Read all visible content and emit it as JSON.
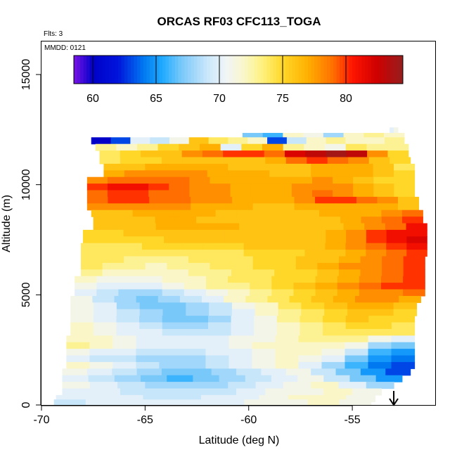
{
  "chart_data": {
    "type": "heatmap",
    "title": "ORCAS RF03 CFC113_TOGA",
    "subtitle": "Flts: 3",
    "annotation": "MMDD: 0121",
    "xlabel": "Latitude (deg N)",
    "ylabel": "Altitude (m)",
    "xlim": [
      -70,
      -51
    ],
    "ylim": [
      0,
      16500
    ],
    "xticks": [
      -70,
      -65,
      -60,
      -55
    ],
    "xtick_labels": [
      "-70",
      "-65",
      "-60",
      "-55"
    ],
    "yticks": [
      0,
      5000,
      10000,
      15000
    ],
    "ytick_labels": [
      "0",
      "5000",
      "10000",
      "15000"
    ],
    "colorbar": {
      "range": [
        58.5,
        84.5
      ],
      "ticks": [
        60,
        65,
        70,
        75,
        80
      ],
      "tick_labels": [
        "60",
        "65",
        "70",
        "75",
        "80"
      ],
      "placement": "top inside plot"
    },
    "rows": [
      {
        "alt": 12450,
        "lat_start": -53.2,
        "lat_end": -52.8,
        "values": [
          70,
          71
        ]
      },
      {
        "alt": 12200,
        "lat_start": -60.3,
        "lat_end": -52.5,
        "values": [
          67,
          66,
          72,
          71,
          68,
          72,
          73,
          72
        ]
      },
      {
        "alt": 12000,
        "lat_start": -67.6,
        "lat_end": -52.5,
        "values": [
          60,
          63,
          70,
          69,
          71,
          76,
          74,
          73,
          72,
          63,
          69,
          72,
          73,
          72,
          72,
          73
        ]
      },
      {
        "alt": 11700,
        "lat_start": -67.4,
        "lat_end": -52.3,
        "values": [
          73,
          72,
          73,
          75,
          76,
          77,
          70,
          75,
          77,
          73,
          72,
          71,
          74,
          73,
          73
        ]
      },
      {
        "alt": 11400,
        "lat_start": -67.2,
        "lat_end": -52.3,
        "values": [
          74,
          75,
          76,
          76,
          78,
          79,
          80,
          80,
          79,
          82,
          83,
          84,
          83,
          78,
          75
        ]
      },
      {
        "alt": 11100,
        "lat_start": -67.2,
        "lat_end": -52.2,
        "values": [
          74,
          75,
          75,
          76,
          76,
          76,
          76,
          76,
          77,
          79,
          80,
          79,
          78,
          76,
          75
        ]
      },
      {
        "alt": 10800,
        "lat_start": -67.0,
        "lat_end": -52.0,
        "values": [
          76,
          76,
          77,
          77,
          77,
          77,
          76,
          76,
          76,
          76,
          77,
          77,
          77,
          76,
          74
        ]
      },
      {
        "alt": 10500,
        "lat_start": -67.0,
        "lat_end": -52.0,
        "values": [
          77,
          78,
          78,
          78,
          78,
          77,
          77,
          77,
          76,
          76,
          77,
          77,
          77,
          76,
          75
        ]
      },
      {
        "alt": 10200,
        "lat_start": -67.8,
        "lat_end": -52.0,
        "values": [
          78,
          79,
          79,
          79,
          79,
          78,
          77,
          77,
          77,
          77,
          77,
          78,
          77,
          76,
          75,
          75
        ]
      },
      {
        "alt": 9900,
        "lat_start": -67.8,
        "lat_end": -52.0,
        "values": [
          80,
          81,
          81,
          80,
          79,
          78,
          78,
          77,
          77,
          77,
          78,
          78,
          78,
          77,
          76,
          75
        ]
      },
      {
        "alt": 9600,
        "lat_start": -67.8,
        "lat_end": -52.0,
        "values": [
          79,
          80,
          80,
          79,
          79,
          78,
          78,
          77,
          77,
          77,
          78,
          79,
          78,
          77,
          76,
          75
        ]
      },
      {
        "alt": 9300,
        "lat_start": -67.8,
        "lat_end": -51.8,
        "values": [
          79,
          80,
          80,
          79,
          79,
          78,
          78,
          77,
          77,
          77,
          78,
          80,
          80,
          79,
          78,
          76
        ]
      },
      {
        "alt": 9000,
        "lat_start": -67.8,
        "lat_end": -51.8,
        "values": [
          78,
          78,
          78,
          78,
          78,
          77,
          77,
          77,
          76,
          76,
          77,
          77,
          77,
          77,
          77,
          76
        ]
      },
      {
        "alt": 8700,
        "lat_start": -67.6,
        "lat_end": -51.6,
        "values": [
          76,
          76,
          77,
          77,
          77,
          77,
          76,
          76,
          76,
          76,
          76,
          77,
          77,
          77,
          78,
          79
        ]
      },
      {
        "alt": 8400,
        "lat_start": -67.5,
        "lat_end": -51.6,
        "values": [
          76,
          76,
          76,
          77,
          77,
          76,
          76,
          76,
          76,
          76,
          76,
          76,
          77,
          78,
          79,
          80
        ]
      },
      {
        "alt": 8100,
        "lat_start": -67.5,
        "lat_end": -51.4,
        "values": [
          76,
          76,
          76,
          77,
          77,
          77,
          77,
          76,
          76,
          76,
          76,
          76,
          77,
          78,
          79,
          81
        ]
      },
      {
        "alt": 7800,
        "lat_start": -68.0,
        "lat_end": -51.4,
        "values": [
          75,
          75,
          76,
          76,
          76,
          76,
          76,
          76,
          76,
          76,
          76,
          76,
          77,
          78,
          80,
          81,
          81
        ]
      },
      {
        "alt": 7500,
        "lat_start": -68.0,
        "lat_end": -51.4,
        "values": [
          75,
          75,
          75,
          75,
          76,
          76,
          76,
          76,
          76,
          76,
          76,
          76,
          77,
          78,
          80,
          81,
          82
        ]
      },
      {
        "alt": 7200,
        "lat_start": -68.1,
        "lat_end": -51.4,
        "values": [
          74,
          74,
          74,
          75,
          75,
          75,
          75,
          75,
          76,
          76,
          76,
          76,
          77,
          78,
          79,
          80,
          81
        ]
      },
      {
        "alt": 6900,
        "lat_start": -68.1,
        "lat_end": -51.4,
        "values": [
          74,
          74,
          74,
          74,
          74,
          74,
          74,
          74,
          75,
          75,
          75,
          76,
          76,
          77,
          78,
          79,
          80
        ]
      },
      {
        "alt": 6600,
        "lat_start": -68.1,
        "lat_end": -51.5,
        "values": [
          74,
          74,
          73,
          73,
          73,
          74,
          74,
          74,
          75,
          75,
          76,
          76,
          77,
          78,
          79,
          80
        ]
      },
      {
        "alt": 6300,
        "lat_start": -68.1,
        "lat_end": -51.5,
        "values": [
          74,
          73,
          73,
          72,
          73,
          73,
          74,
          74,
          75,
          75,
          76,
          77,
          78,
          78,
          79,
          80
        ]
      },
      {
        "alt": 6000,
        "lat_start": -68.1,
        "lat_end": -51.5,
        "values": [
          73,
          72,
          72,
          72,
          72,
          73,
          73,
          74,
          74,
          75,
          75,
          76,
          77,
          78,
          79,
          80
        ]
      },
      {
        "alt": 5700,
        "lat_start": -68.4,
        "lat_end": -51.5,
        "values": [
          72,
          71,
          71,
          71,
          72,
          72,
          73,
          74,
          74,
          75,
          75,
          76,
          77,
          78,
          79,
          80
        ]
      },
      {
        "alt": 5400,
        "lat_start": -68.4,
        "lat_end": -51.5,
        "values": [
          71,
          70,
          70,
          70,
          71,
          72,
          73,
          73,
          74,
          75,
          76,
          77,
          78,
          79,
          80,
          80
        ]
      },
      {
        "alt": 5100,
        "lat_start": -68.4,
        "lat_end": -51.5,
        "values": [
          70,
          69,
          68,
          68,
          69,
          70,
          71,
          72,
          73,
          74,
          75,
          76,
          77,
          78,
          78,
          79
        ]
      },
      {
        "alt": 4800,
        "lat_start": -68.6,
        "lat_end": -51.7,
        "values": [
          71,
          69,
          68,
          67,
          68,
          69,
          70,
          72,
          73,
          74,
          75,
          76,
          77,
          78,
          78,
          77
        ]
      },
      {
        "alt": 4500,
        "lat_start": -68.6,
        "lat_end": -51.9,
        "values": [
          71,
          70,
          68,
          67,
          67,
          68,
          69,
          71,
          72,
          74,
          75,
          76,
          77,
          77,
          76
        ]
      },
      {
        "alt": 4200,
        "lat_start": -68.6,
        "lat_end": -51.9,
        "values": [
          71,
          70,
          69,
          68,
          67,
          68,
          69,
          70,
          72,
          73,
          74,
          75,
          76,
          76,
          75
        ]
      },
      {
        "alt": 3900,
        "lat_start": -68.6,
        "lat_end": -52.0,
        "values": [
          71,
          70,
          69,
          68,
          67,
          67,
          68,
          70,
          71,
          73,
          74,
          75,
          76,
          75,
          75
        ]
      },
      {
        "alt": 3600,
        "lat_start": -68.6,
        "lat_end": -52.0,
        "values": [
          72,
          71,
          70,
          69,
          68,
          68,
          69,
          70,
          71,
          72,
          73,
          74,
          75,
          75,
          74
        ]
      },
      {
        "alt": 3300,
        "lat_start": -68.6,
        "lat_end": -52.0,
        "values": [
          72,
          71,
          70,
          70,
          69,
          69,
          69,
          70,
          71,
          72,
          73,
          74,
          74,
          74,
          74
        ]
      },
      {
        "alt": 3000,
        "lat_start": -68.8,
        "lat_end": -52.0,
        "values": [
          72,
          72,
          71,
          70,
          70,
          70,
          70,
          71,
          71,
          72,
          73,
          73,
          73,
          71,
          70
        ]
      },
      {
        "alt": 2700,
        "lat_start": -68.8,
        "lat_end": -52.0,
        "values": [
          73,
          72,
          71,
          70,
          70,
          70,
          70,
          71,
          72,
          72,
          72,
          72,
          71,
          68,
          67
        ]
      },
      {
        "alt": 2400,
        "lat_start": -68.8,
        "lat_end": -52.0,
        "values": [
          71,
          70,
          70,
          69,
          69,
          69,
          70,
          70,
          71,
          72,
          72,
          71,
          69,
          66,
          65
        ]
      },
      {
        "alt": 2100,
        "lat_start": -68.8,
        "lat_end": -52.0,
        "values": [
          70,
          69,
          69,
          68,
          68,
          68,
          69,
          70,
          71,
          72,
          71,
          70,
          67,
          65,
          64
        ]
      },
      {
        "alt": 1800,
        "lat_start": -68.8,
        "lat_end": -52.0,
        "values": [
          72,
          71,
          70,
          69,
          68,
          68,
          69,
          70,
          71,
          72,
          70,
          68,
          66,
          64,
          63
        ]
      },
      {
        "alt": 1500,
        "lat_start": -69.0,
        "lat_end": -52.2,
        "values": [
          71,
          70,
          69,
          68,
          67,
          67,
          68,
          69,
          70,
          71,
          69,
          67,
          65,
          63
        ]
      },
      {
        "alt": 1200,
        "lat_start": -69.0,
        "lat_end": -52.6,
        "values": [
          70,
          69,
          68,
          67,
          66,
          67,
          68,
          69,
          70,
          71,
          69,
          67,
          65
        ]
      },
      {
        "alt": 900,
        "lat_start": -69.0,
        "lat_end": -53.0,
        "values": [
          71,
          70,
          69,
          68,
          68,
          68,
          69,
          70,
          71,
          72,
          70,
          68
        ]
      },
      {
        "alt": 600,
        "lat_start": -69.0,
        "lat_end": -53.6,
        "values": [
          70,
          70,
          69,
          69,
          69,
          69,
          70,
          71,
          71,
          72,
          71
        ]
      },
      {
        "alt": 300,
        "lat_start": -69.3,
        "lat_end": -53.9,
        "values": [
          70,
          70,
          70,
          69,
          69,
          70,
          70,
          71,
          72,
          72,
          71
        ]
      },
      {
        "alt": 100,
        "lat_start": -69.4,
        "lat_end": -54.1,
        "values": [
          69,
          70,
          70,
          70,
          70,
          70,
          71,
          71,
          72,
          71
        ]
      }
    ],
    "arrow_marker": {
      "lat": -53.0,
      "direction": "down"
    }
  }
}
